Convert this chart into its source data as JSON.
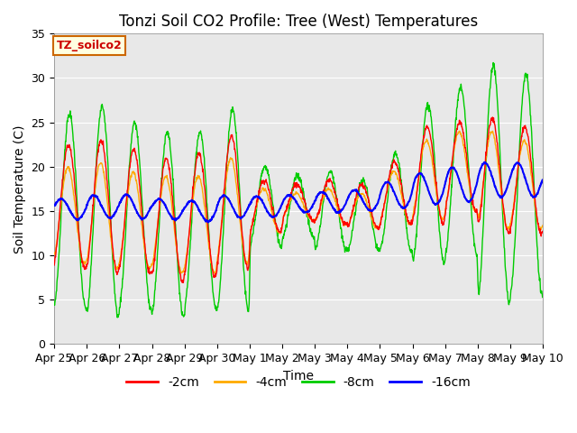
{
  "title": "Tonzi Soil CO2 Profile: Tree (West) Temperatures",
  "xlabel": "Time",
  "ylabel": "Soil Temperature (C)",
  "ylim": [
    0,
    35
  ],
  "yticks": [
    0,
    5,
    10,
    15,
    20,
    25,
    30,
    35
  ],
  "legend_label": "TZ_soilco2",
  "series_labels": [
    "-2cm",
    "-4cm",
    "-8cm",
    "-16cm"
  ],
  "series_colors": [
    "#ff0000",
    "#ffaa00",
    "#00cc00",
    "#0000ff"
  ],
  "x_tick_labels": [
    "Apr 25",
    "Apr 26",
    "Apr 27",
    "Apr 28",
    "Apr 29",
    "Apr 30",
    "May 1",
    "May 2",
    "May 3",
    "May 4",
    "May 5",
    "May 6",
    "May 7",
    "May 8",
    "May 9",
    "May 10"
  ],
  "plot_bg_color": "#e8e8e8",
  "title_fontsize": 12,
  "label_fontsize": 10,
  "tick_fontsize": 9
}
